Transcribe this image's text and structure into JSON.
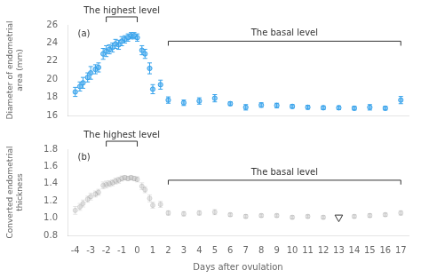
{
  "chart_data": [
    {
      "type": "scatter",
      "x": [
        -4,
        -3.7,
        -3.5,
        -3.2,
        -3,
        -2.7,
        -2.5,
        -2.2,
        -2,
        -1.8,
        -1.6,
        -1.4,
        -1.2,
        -1,
        -0.8,
        -0.6,
        -0.4,
        -0.2,
        0,
        0.3,
        0.5,
        0.8,
        1,
        1.5,
        2,
        3,
        4,
        5,
        6,
        7,
        8,
        9,
        10,
        11,
        12,
        13,
        14,
        15,
        16,
        17
      ],
      "values": [
        18.6,
        19.2,
        19.6,
        20.2,
        20.7,
        21.1,
        21.3,
        22.8,
        23.1,
        23.3,
        23.5,
        23.9,
        23.8,
        24.2,
        24.4,
        24.6,
        24.8,
        24.8,
        24.6,
        23.2,
        22.8,
        21.2,
        18.9,
        19.4,
        17.7,
        17.4,
        17.6,
        17.9,
        17.3,
        16.9,
        17.15,
        17.1,
        17.0,
        16.9,
        16.85,
        16.85,
        16.8,
        16.9,
        16.8,
        17.7
      ],
      "yerr": [
        0.5,
        0.5,
        0.6,
        0.5,
        0.7,
        0.5,
        0.5,
        0.6,
        0.6,
        0.5,
        0.5,
        0.5,
        0.5,
        0.5,
        0.4,
        0.4,
        0.35,
        0.35,
        0.4,
        0.5,
        0.5,
        0.6,
        0.5,
        0.5,
        0.35,
        0.3,
        0.35,
        0.4,
        0.2,
        0.3,
        0.25,
        0.25,
        0.2,
        0.2,
        0.2,
        0.2,
        0.2,
        0.3,
        0.2,
        0.4
      ],
      "marker": "circle",
      "y_label": "Diameter of endometrial\narea (mm)",
      "xlim": [
        -4.5,
        17.5
      ],
      "xticks": [
        -4,
        -3,
        -2,
        -1,
        0,
        1,
        2,
        3,
        4,
        5,
        6,
        7,
        8,
        9,
        10,
        11,
        12,
        13,
        14,
        15,
        16,
        17
      ],
      "ylim": [
        16,
        26
      ],
      "yticks": [
        16,
        18,
        20,
        22,
        24,
        26
      ],
      "tick_labels": "y",
      "grid": false,
      "annotations": [
        {
          "text": "(a)"
        },
        {
          "text": "The highest level",
          "x": [
            -2,
            0
          ]
        },
        {
          "text": "The basal level",
          "x": [
            2,
            17
          ],
          "y": 24.2
        }
      ]
    },
    {
      "type": "scatter",
      "x": [
        -4,
        -3.7,
        -3.5,
        -3.2,
        -3,
        -2.7,
        -2.5,
        -2.2,
        -2,
        -1.8,
        -1.6,
        -1.4,
        -1.2,
        -1,
        -0.8,
        -0.6,
        -0.4,
        -0.2,
        0,
        0.3,
        0.5,
        0.8,
        1,
        1.5,
        2,
        3,
        4,
        5,
        6,
        7,
        8,
        9,
        10,
        11,
        12,
        13,
        14,
        15,
        16,
        17
      ],
      "values": [
        1.09,
        1.13,
        1.17,
        1.22,
        1.25,
        1.28,
        1.3,
        1.38,
        1.39,
        1.4,
        1.41,
        1.43,
        1.44,
        1.46,
        1.47,
        1.46,
        1.47,
        1.46,
        1.45,
        1.37,
        1.33,
        1.23,
        1.15,
        1.16,
        1.06,
        1.05,
        1.06,
        1.07,
        1.04,
        1.02,
        1.03,
        1.03,
        1.01,
        1.02,
        1.01,
        1.01,
        1.02,
        1.03,
        1.04,
        1.06
      ],
      "yerr": [
        0.045,
        0.04,
        0.04,
        0.035,
        0.04,
        0.035,
        0.035,
        0.04,
        0.04,
        0.035,
        0.035,
        0.035,
        0.035,
        0.03,
        0.025,
        0.025,
        0.025,
        0.025,
        0.03,
        0.04,
        0.035,
        0.04,
        0.035,
        0.035,
        0.025,
        0.025,
        0.025,
        0.03,
        0.018,
        0.02,
        0.018,
        0.018,
        0.018,
        0.018,
        0.018,
        0.018,
        0.018,
        0.02,
        0.018,
        0.025
      ],
      "marker": "circle",
      "y_label": "Converted endometrial\nthickness",
      "x_label": "Days after ovulation",
      "xlim": [
        -4.5,
        17.5
      ],
      "xticks": [
        -4,
        -3,
        -2,
        -1,
        0,
        1,
        2,
        3,
        4,
        5,
        6,
        7,
        8,
        9,
        10,
        11,
        12,
        13,
        14,
        15,
        16,
        17
      ],
      "ylim": [
        0.8,
        1.8
      ],
      "yticks": [
        0.8,
        {
          "value": 1.0,
          "label": "1.0"
        },
        1.2,
        1.4,
        1.6,
        1.8
      ],
      "grid": false,
      "annotations": [
        {
          "text": "(b)"
        },
        {
          "text": "The highest level",
          "x": [
            -2,
            0
          ]
        },
        {
          "text": "The basal level",
          "x": [
            2,
            17
          ],
          "y": 1.44
        },
        {
          "marker": "triangle_down",
          "x": 13,
          "y": 1.01
        }
      ]
    }
  ]
}
